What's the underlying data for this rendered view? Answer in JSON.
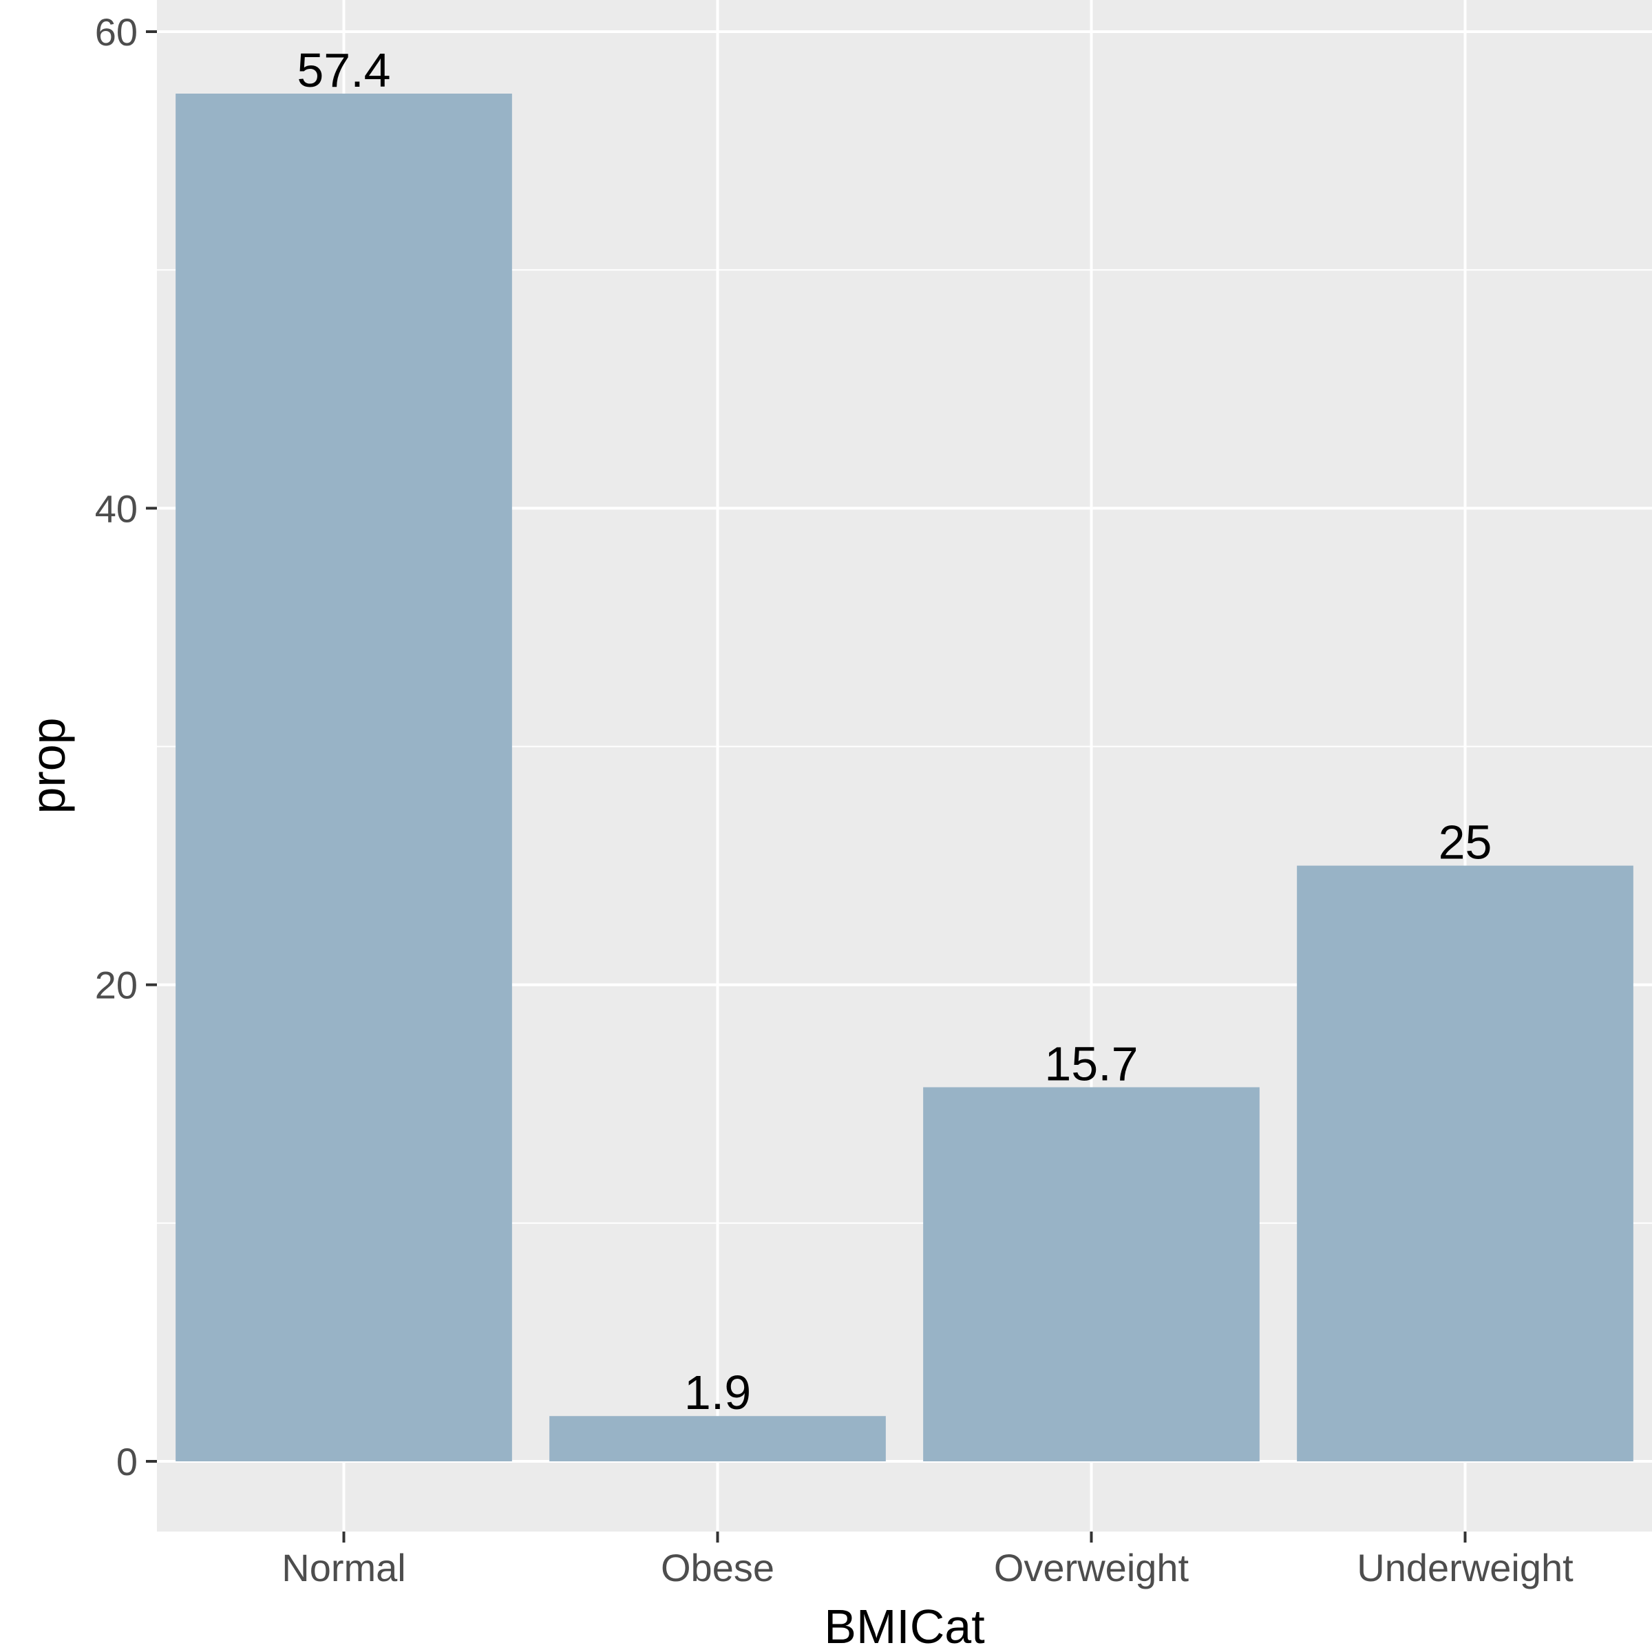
{
  "chart_data": {
    "type": "bar",
    "title": "",
    "xlabel": "BMICat",
    "ylabel": "prop",
    "categories": [
      "Normal",
      "Obese",
      "Overweight",
      "Underweight"
    ],
    "values": [
      57.4,
      1.9,
      15.7,
      25
    ],
    "data_labels": [
      "57.4",
      "1.9",
      "15.7",
      "25"
    ],
    "yticks": [
      0,
      20,
      40,
      60
    ],
    "ytick_labels": [
      "0",
      "20",
      "40",
      "60"
    ],
    "ylim": [
      -2.87,
      60.27
    ],
    "grid": true,
    "legend": "none",
    "colors": {
      "bar": "#98b3c6",
      "panel": "#ebebeb",
      "grid": "#ffffff"
    }
  }
}
